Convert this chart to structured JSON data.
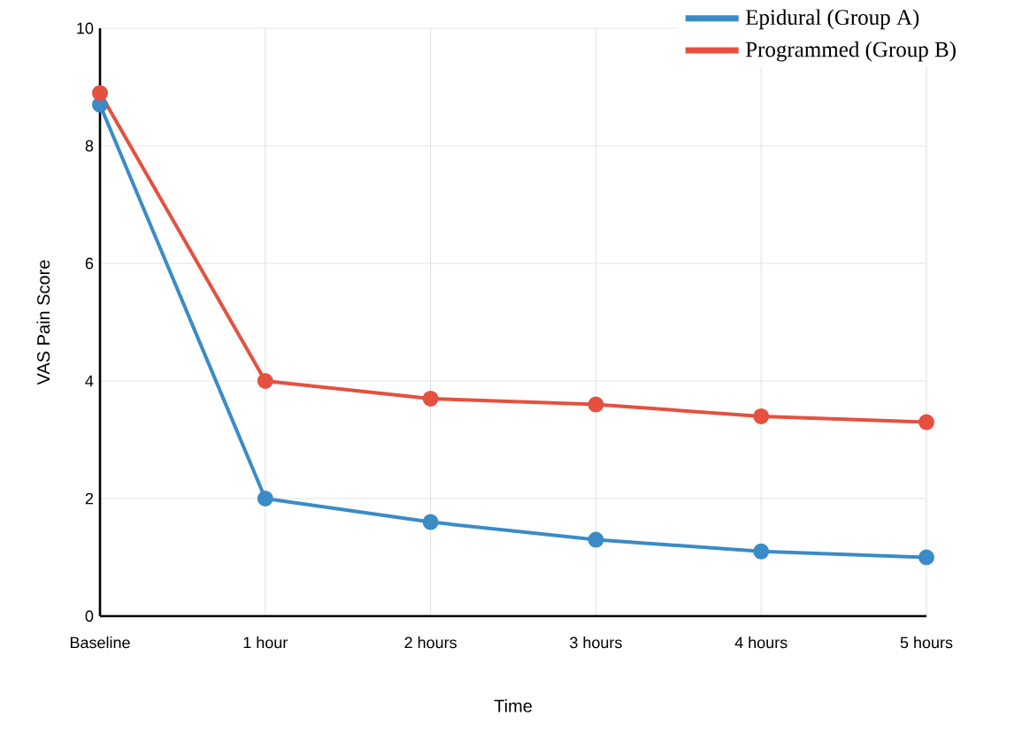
{
  "chart_data": {
    "type": "line",
    "xlabel": "Time",
    "ylabel": "VAS Pain Score",
    "categories": [
      "Baseline",
      "1 hour",
      "2 hours",
      "3 hours",
      "4 hours",
      "5 hours"
    ],
    "series": [
      {
        "name": "Epidural (Group A)",
        "color": "#3a8bc6",
        "values": [
          8.7,
          2.0,
          1.6,
          1.3,
          1.1,
          1.0
        ]
      },
      {
        "name": "Programmed (Group B)",
        "color": "#e5503f",
        "values": [
          8.9,
          4.0,
          3.7,
          3.6,
          3.4,
          3.3
        ]
      }
    ],
    "ylim": [
      0,
      10
    ],
    "yticks": [
      0,
      2,
      4,
      6,
      8,
      10
    ],
    "grid": true,
    "legend": "top right",
    "marker": "circle",
    "line_style": "solid"
  }
}
